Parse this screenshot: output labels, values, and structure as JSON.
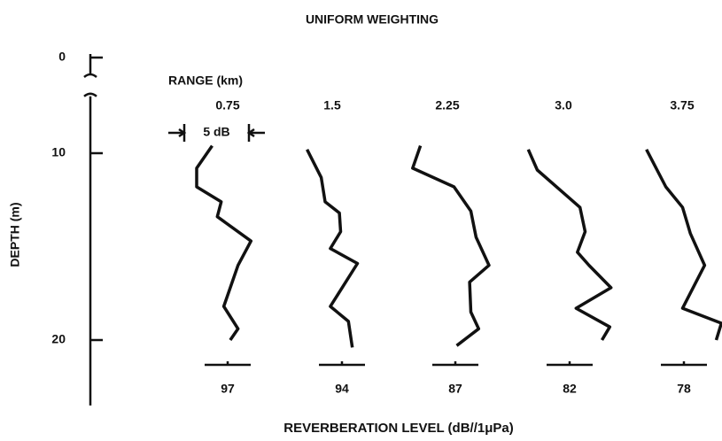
{
  "chart_data": {
    "type": "profile",
    "title": "UNIFORM WEIGHTING",
    "ylabel": "DEPTH (m)",
    "xlabel": "REVERBERATION LEVEL (dB//1μPa)",
    "series_label": "RANGE (km)",
    "ylim": [
      0,
      23.5
    ],
    "yticks": [
      0,
      10,
      20
    ],
    "axis_break": [
      0.5,
      8
    ],
    "scale_bar": {
      "label": "5 dB",
      "value": 5
    },
    "color": "#111111",
    "series": [
      {
        "name": "0.75",
        "ref": 97,
        "depth": [
          9.6,
          10.8,
          11.8,
          12.6,
          13.4,
          14.7,
          16.0,
          18.2,
          19.4,
          20.0
        ],
        "values": [
          95.8,
          94.6,
          94.6,
          96.5,
          96.2,
          98.8,
          97.8,
          96.7,
          97.8,
          97.2
        ]
      },
      {
        "name": "1.5",
        "ref": 94,
        "depth": [
          9.8,
          11.3,
          12.6,
          13.2,
          14.2,
          15.1,
          15.9,
          18.2,
          19.0,
          20.4
        ],
        "values": [
          91.3,
          92.4,
          92.7,
          93.8,
          93.9,
          93.1,
          95.2,
          93.1,
          94.5,
          94.8
        ]
      },
      {
        "name": "2.25",
        "ref": 87,
        "depth": [
          9.6,
          10.8,
          11.8,
          13.1,
          14.5,
          16.0,
          16.9,
          18.5,
          19.4,
          20.3
        ],
        "values": [
          84.3,
          83.7,
          86.9,
          88.2,
          88.6,
          89.6,
          88.1,
          88.2,
          88.8,
          87.1
        ]
      },
      {
        "name": "3.0",
        "ref": 82,
        "depth": [
          9.8,
          10.9,
          12.9,
          14.2,
          15.3,
          16.0,
          17.2,
          18.3,
          19.3,
          20.0
        ],
        "values": [
          78.8,
          79.5,
          82.8,
          83.2,
          82.6,
          83.5,
          85.2,
          82.5,
          85.1,
          84.5
        ]
      },
      {
        "name": "3.75",
        "ref": 78,
        "depth": [
          9.8,
          11.8,
          12.9,
          14.3,
          16.0,
          18.3,
          19.1,
          20.0
        ],
        "values": [
          75.1,
          76.6,
          77.9,
          78.5,
          79.6,
          77.9,
          80.9,
          80.5
        ]
      }
    ]
  }
}
